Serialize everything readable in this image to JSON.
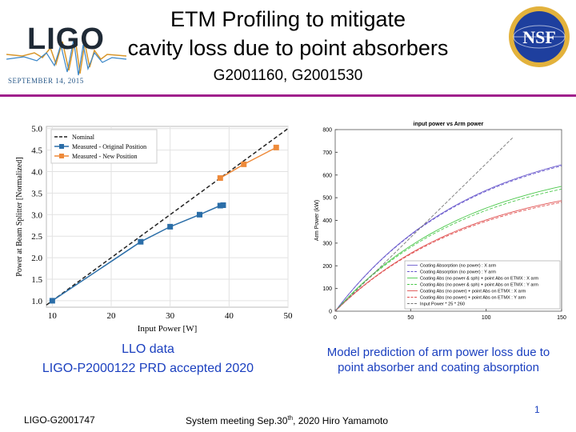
{
  "slide": {
    "title_line1": "ETM Profiling to mitigate",
    "title_line2": "cavity loss due to point absorbers",
    "subtitle": "G2001160, G2001530",
    "logo_left_text": "LIGO",
    "logo_left_date": "SEPTEMBER 14, 2015",
    "logo_right_text": "NSF",
    "caption_left_line1": "LLO data",
    "caption_left_line2": "LIGO-P2000122 PRD accepted 2020",
    "caption_right_line1": "Model prediction of arm power loss due to",
    "caption_right_line2": "point absorber and coating absorption",
    "page_number": "1",
    "footer_left": "LIGO-G2001747",
    "footer_mid_prefix": "System meeting Sep.30",
    "footer_mid_sup": "th",
    "footer_mid_suffix": ", 2020   Hiro Yamamoto",
    "colors": {
      "divider": "#a0208c",
      "caption": "#1a3fbf"
    }
  },
  "chart_data": [
    {
      "type": "line",
      "title": "",
      "xlabel": "Input Power [W]",
      "ylabel": "Power at Beam Splitter [Normalized]",
      "xlim": [
        9,
        50
      ],
      "ylim": [
        0.85,
        5.05
      ],
      "xticks": [
        10,
        20,
        30,
        40,
        50
      ],
      "yticks": [
        1.0,
        1.5,
        2.0,
        2.5,
        3.0,
        3.5,
        4.0,
        4.5,
        5.0
      ],
      "xtick_labels": [
        "10",
        "20",
        "30",
        "40",
        "50"
      ],
      "ytick_labels": [
        "1.0",
        "1.5",
        "2.0",
        "2.5",
        "3.0",
        "3.5",
        "4.0",
        "4.5",
        "5.0"
      ],
      "legend_position": "top-left",
      "grid": true,
      "series": [
        {
          "name": "Nominal",
          "style": "dashed",
          "color": "#222222",
          "x": [
            9,
            50
          ],
          "y": [
            0.9,
            5.0
          ]
        },
        {
          "name": "Measured - Original Position",
          "style": "line-square",
          "color": "#2b6ea8",
          "x": [
            10,
            25,
            30,
            35,
            38.5,
            39
          ],
          "y": [
            1.0,
            2.37,
            2.72,
            3.0,
            3.21,
            3.22
          ]
        },
        {
          "name": "Measured - New Position",
          "style": "line-square",
          "color": "#ee8a3a",
          "x": [
            38.5,
            42.5,
            48
          ],
          "y": [
            3.85,
            4.17,
            4.56
          ]
        }
      ]
    },
    {
      "type": "line",
      "title": "input power vs Arm power",
      "xlabel": "",
      "ylabel": "Arm Power (kW)",
      "xlim": [
        0,
        150
      ],
      "ylim": [
        0,
        800
      ],
      "xticks": [
        0,
        50,
        100,
        150
      ],
      "yticks": [
        0,
        100,
        200,
        300,
        400,
        500,
        600,
        700,
        800
      ],
      "xtick_labels": [
        "0",
        "50",
        "100",
        "150"
      ],
      "ytick_labels": [
        "0",
        "100",
        "200",
        "300",
        "400",
        "500",
        "600",
        "700",
        "800"
      ],
      "legend_position": "bottom-right",
      "grid": false,
      "series": [
        {
          "name": "Coating Absorption (no power) : X arm",
          "style": "solid",
          "color": "#6a5acd",
          "final": 645
        },
        {
          "name": "Coating Absorption (no power) : Y arm",
          "style": "dashed",
          "color": "#6a5acd",
          "final": 640
        },
        {
          "name": "Coating Abs (no power & sph) + point Abs on ETMX : X arm",
          "style": "solid",
          "color": "#4cc84c",
          "final": 550
        },
        {
          "name": "Coating Abs (no power & sph) + point Abs on ETMX : Y arm",
          "style": "dashed",
          "color": "#4cc84c",
          "final": 538
        },
        {
          "name": "Coating Abs (no power) + point Abs on ETMX : X arm",
          "style": "solid",
          "color": "#e05050",
          "final": 487
        },
        {
          "name": "Coating Abs (no power) + point Abs on ETMX : Y arm",
          "style": "dashed",
          "color": "#e05050",
          "final": 480
        },
        {
          "name": "Input Power * 25 * 260",
          "style": "dashed",
          "color": "#777777",
          "slope": 6.5
        }
      ]
    }
  ]
}
